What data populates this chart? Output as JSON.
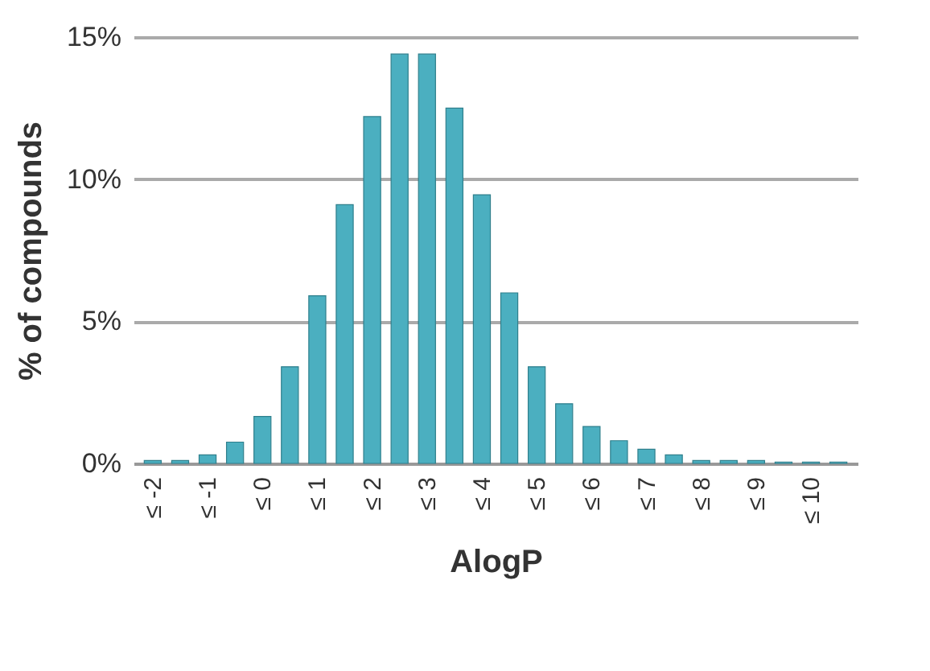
{
  "chart_data": {
    "type": "bar",
    "xlabel": "AlogP",
    "ylabel": "% of compounds",
    "categories": [
      "≤ -2",
      null,
      "≤ -1",
      null,
      "≤ 0",
      null,
      "≤ 1",
      null,
      "≤ 2",
      null,
      "≤ 3",
      null,
      "≤ 4",
      null,
      "≤ 5",
      null,
      "≤ 6",
      null,
      "≤ 7",
      null,
      "≤ 8",
      null,
      "≤ 9",
      null,
      "≤ 10",
      null
    ],
    "values": [
      0.1,
      0.1,
      0.3,
      0.75,
      1.65,
      3.4,
      5.9,
      9.1,
      12.2,
      14.4,
      14.4,
      12.5,
      9.45,
      6.0,
      3.4,
      2.1,
      1.3,
      0.8,
      0.5,
      0.3,
      0.1,
      0.1,
      0.1,
      0.05,
      0.05,
      0.05
    ],
    "color": "#4bafc0",
    "ylim": [
      0,
      15
    ],
    "yticks": [
      {
        "value": 0,
        "label": "0%"
      },
      {
        "value": 5,
        "label": "5%"
      },
      {
        "value": 10,
        "label": "10%"
      },
      {
        "value": 15,
        "label": "15%"
      }
    ],
    "grid": "y"
  }
}
